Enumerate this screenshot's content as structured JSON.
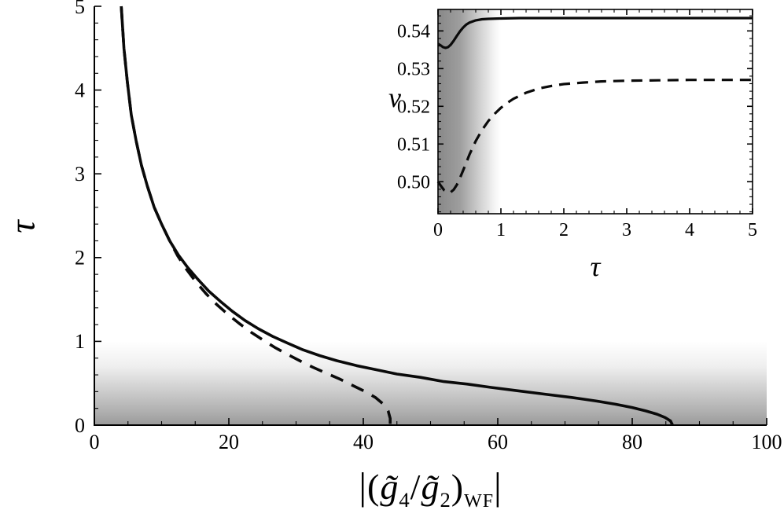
{
  "figure": {
    "background": "#ffffff",
    "curve_color": "#0a0a0a"
  },
  "labels": {
    "main_ylabel": "τ",
    "main_xlabel": {
      "bar_open": "|",
      "paren_open": "(",
      "g_top": "g̃",
      "sub_top": "4",
      "slash": "/",
      "g_bot": "g̃",
      "sub_bot": "2",
      "paren_close": ")",
      "sub_wf": "WF",
      "bar_close": "|"
    },
    "inset_ylabel": "ν",
    "inset_xlabel": "τ"
  },
  "chart_data": [
    {
      "id": "main",
      "type": "line",
      "frame": "axes",
      "title": "",
      "xlabel_text": "|(g̃4/g̃2)WF|",
      "ylabel_text": "τ",
      "xlim": [
        0,
        100
      ],
      "ylim": [
        0,
        5
      ],
      "xticks": [
        {
          "v": 0,
          "t": "0"
        },
        {
          "v": 20,
          "t": "20"
        },
        {
          "v": 40,
          "t": "40"
        },
        {
          "v": 60,
          "t": "60"
        },
        {
          "v": 80,
          "t": "80"
        },
        {
          "v": 100,
          "t": "100"
        }
      ],
      "yticks": [
        {
          "v": 0,
          "t": "0"
        },
        {
          "v": 1,
          "t": "1"
        },
        {
          "v": 2,
          "t": "2"
        },
        {
          "v": 3,
          "t": "3"
        },
        {
          "v": 4,
          "t": "4"
        },
        {
          "v": 5,
          "t": "5"
        }
      ],
      "minor_x": 5,
      "minor_y": 0.2,
      "grid": false,
      "legend": false,
      "shaded": {
        "axis": "y",
        "from": 0,
        "to": 1,
        "color": "#787878"
      },
      "series": [
        {
          "name": "solid",
          "dashed": false,
          "points": [
            [
              4.0,
              5.0
            ],
            [
              4.4,
              4.5
            ],
            [
              4.9,
              4.1
            ],
            [
              5.5,
              3.7
            ],
            [
              6.2,
              3.4
            ],
            [
              7.0,
              3.1
            ],
            [
              7.9,
              2.85
            ],
            [
              8.9,
              2.6
            ],
            [
              10.0,
              2.4
            ],
            [
              11.2,
              2.2
            ],
            [
              12.5,
              2.03
            ],
            [
              13.9,
              1.88
            ],
            [
              15.4,
              1.74
            ],
            [
              17.0,
              1.6
            ],
            [
              18.7,
              1.48
            ],
            [
              20.5,
              1.36
            ],
            [
              22.4,
              1.25
            ],
            [
              24.4,
              1.15
            ],
            [
              26.5,
              1.06
            ],
            [
              28.7,
              0.98
            ],
            [
              31.0,
              0.9
            ],
            [
              33.5,
              0.83
            ],
            [
              36.0,
              0.77
            ],
            [
              39.0,
              0.71
            ],
            [
              42.0,
              0.66
            ],
            [
              45.0,
              0.61
            ],
            [
              48.5,
              0.57
            ],
            [
              52.0,
              0.52
            ],
            [
              55.5,
              0.49
            ],
            [
              59.0,
              0.45
            ],
            [
              63.0,
              0.41
            ],
            [
              67.0,
              0.37
            ],
            [
              71.0,
              0.33
            ],
            [
              74.5,
              0.29
            ],
            [
              77.5,
              0.25
            ],
            [
              80.0,
              0.21
            ],
            [
              82.0,
              0.17
            ],
            [
              83.7,
              0.13
            ],
            [
              84.9,
              0.09
            ],
            [
              85.7,
              0.05
            ],
            [
              86.0,
              0.0
            ]
          ]
        },
        {
          "name": "dashed",
          "dashed": true,
          "points": [
            [
              4.0,
              5.0
            ],
            [
              4.4,
              4.5
            ],
            [
              4.9,
              4.1
            ],
            [
              5.5,
              3.7
            ],
            [
              6.2,
              3.4
            ],
            [
              7.0,
              3.1
            ],
            [
              7.9,
              2.85
            ],
            [
              8.9,
              2.6
            ],
            [
              10.0,
              2.4
            ],
            [
              11.2,
              2.2
            ],
            [
              12.4,
              2.02
            ],
            [
              13.7,
              1.86
            ],
            [
              15.1,
              1.71
            ],
            [
              16.6,
              1.57
            ],
            [
              18.2,
              1.44
            ],
            [
              19.9,
              1.32
            ],
            [
              21.6,
              1.21
            ],
            [
              23.3,
              1.11
            ],
            [
              25.0,
              1.02
            ],
            [
              26.8,
              0.93
            ],
            [
              28.6,
              0.85
            ],
            [
              30.5,
              0.77
            ],
            [
              32.5,
              0.69
            ],
            [
              34.5,
              0.62
            ],
            [
              36.5,
              0.55
            ],
            [
              38.5,
              0.47
            ],
            [
              40.3,
              0.4
            ],
            [
              41.8,
              0.33
            ],
            [
              43.0,
              0.25
            ],
            [
              43.7,
              0.17
            ],
            [
              44.0,
              0.08
            ],
            [
              44.0,
              0.0
            ]
          ]
        }
      ]
    },
    {
      "id": "inset",
      "type": "line",
      "frame": "frame",
      "title": "",
      "xlabel_text": "τ",
      "ylabel_text": "ν",
      "xlim": [
        0,
        5
      ],
      "ylim": [
        0.4915,
        0.5457
      ],
      "xticks": [
        {
          "v": 0,
          "t": "0"
        },
        {
          "v": 1,
          "t": "1"
        },
        {
          "v": 2,
          "t": "2"
        },
        {
          "v": 3,
          "t": "3"
        },
        {
          "v": 4,
          "t": "4"
        },
        {
          "v": 5,
          "t": "5"
        }
      ],
      "yticks": [
        {
          "v": 0.5,
          "t": "0.50"
        },
        {
          "v": 0.51,
          "t": "0.51"
        },
        {
          "v": 0.52,
          "t": "0.52"
        },
        {
          "v": 0.53,
          "t": "0.53"
        },
        {
          "v": 0.54,
          "t": "0.54"
        }
      ],
      "minor_x": 0.2,
      "minor_y": 0.002,
      "grid": false,
      "legend": false,
      "shaded": {
        "axis": "x",
        "from": 0,
        "to": 1,
        "color": "#787878"
      },
      "series": [
        {
          "name": "solid",
          "dashed": false,
          "points": [
            [
              0,
              0.5366
            ],
            [
              0.04,
              0.5362
            ],
            [
              0.08,
              0.5357
            ],
            [
              0.12,
              0.5355
            ],
            [
              0.16,
              0.5357
            ],
            [
              0.2,
              0.5363
            ],
            [
              0.25,
              0.5374
            ],
            [
              0.3,
              0.5387
            ],
            [
              0.35,
              0.5399
            ],
            [
              0.4,
              0.5409
            ],
            [
              0.45,
              0.5417
            ],
            [
              0.5,
              0.5422
            ],
            [
              0.6,
              0.5428
            ],
            [
              0.7,
              0.5431
            ],
            [
              0.8,
              0.5432
            ],
            [
              1.0,
              0.5433
            ],
            [
              1.3,
              0.5434
            ],
            [
              1.6,
              0.5434
            ],
            [
              2.0,
              0.5434
            ],
            [
              2.5,
              0.5434
            ],
            [
              3.0,
              0.5434
            ],
            [
              3.5,
              0.5434
            ],
            [
              4.0,
              0.5434
            ],
            [
              4.5,
              0.5434
            ],
            [
              5.0,
              0.5434
            ]
          ]
        },
        {
          "name": "dashed",
          "dashed": true,
          "points": [
            [
              0,
              0.5
            ],
            [
              0.05,
              0.4988
            ],
            [
              0.1,
              0.4977
            ],
            [
              0.15,
              0.4971
            ],
            [
              0.2,
              0.4972
            ],
            [
              0.25,
              0.4979
            ],
            [
              0.3,
              0.4992
            ],
            [
              0.35,
              0.501
            ],
            [
              0.4,
              0.503
            ],
            [
              0.45,
              0.5051
            ],
            [
              0.5,
              0.5072
            ],
            [
              0.6,
              0.5108
            ],
            [
              0.7,
              0.5137
            ],
            [
              0.8,
              0.5161
            ],
            [
              0.9,
              0.518
            ],
            [
              1.0,
              0.5196
            ],
            [
              1.1,
              0.5209
            ],
            [
              1.2,
              0.522
            ],
            [
              1.4,
              0.5236
            ],
            [
              1.6,
              0.5247
            ],
            [
              1.8,
              0.5254
            ],
            [
              2.0,
              0.5259
            ],
            [
              2.3,
              0.5263
            ],
            [
              2.6,
              0.5266
            ],
            [
              3.0,
              0.5268
            ],
            [
              3.5,
              0.5269
            ],
            [
              4.0,
              0.527
            ],
            [
              4.5,
              0.527
            ],
            [
              5.0,
              0.527
            ]
          ]
        }
      ]
    }
  ]
}
